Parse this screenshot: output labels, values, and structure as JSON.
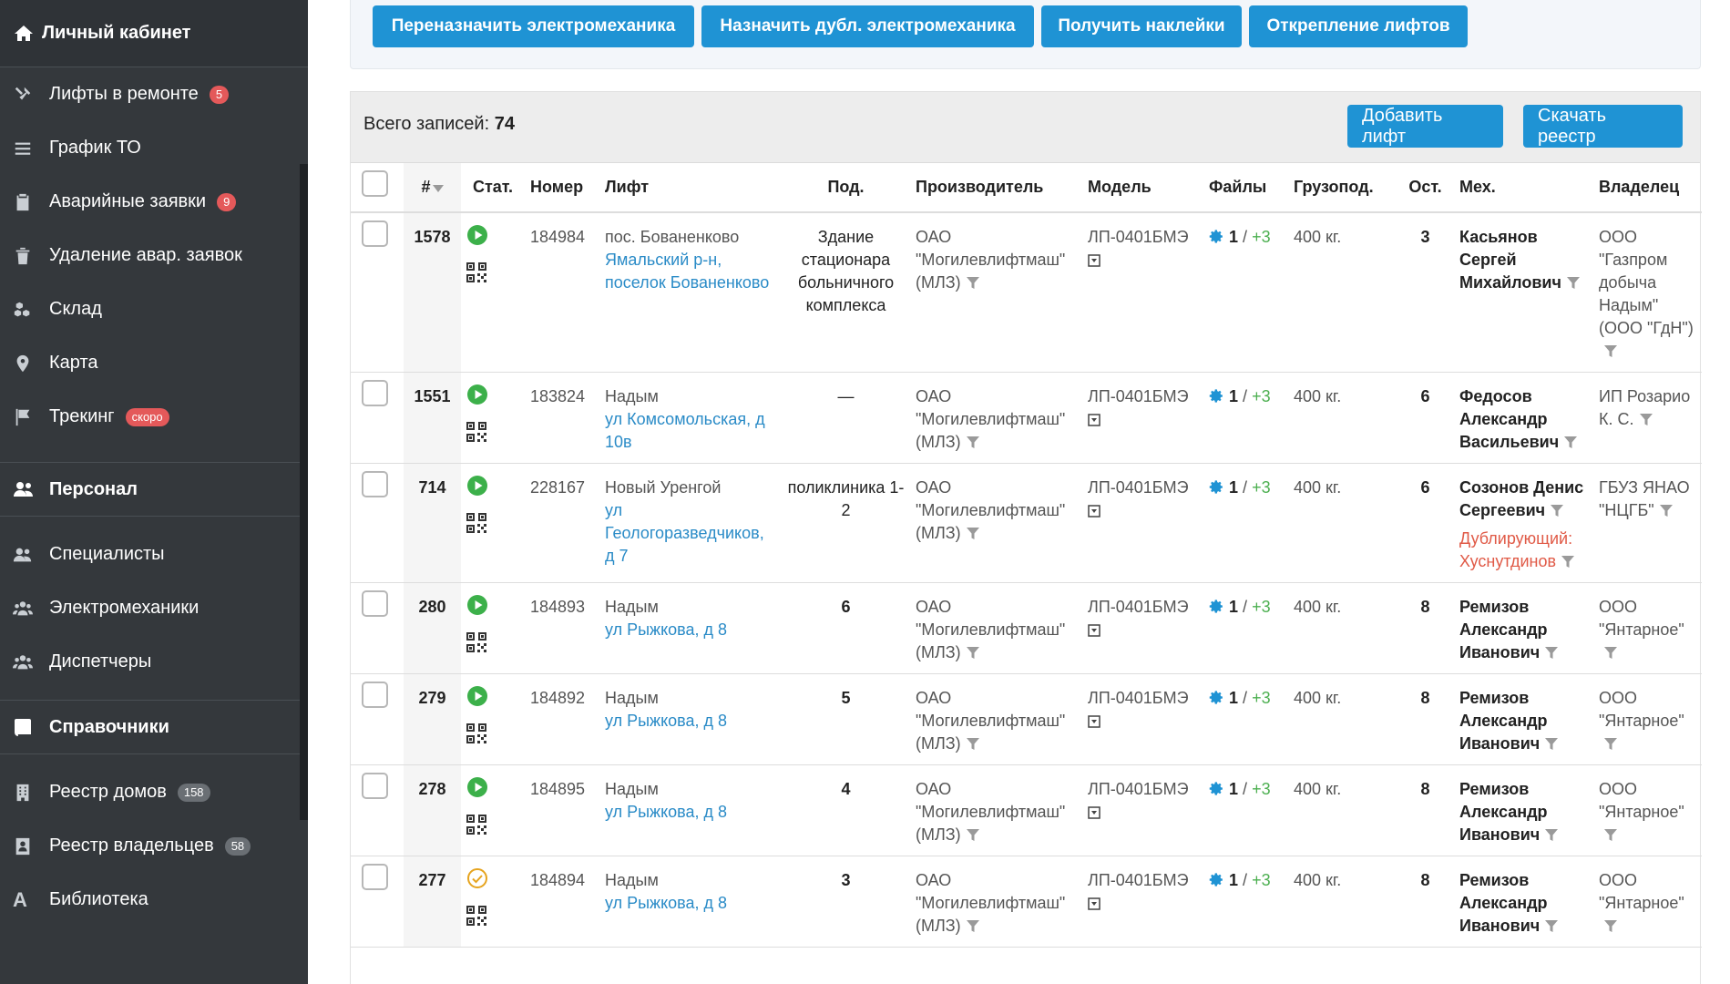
{
  "sidebar": {
    "header": "Личный кабинет",
    "items": [
      {
        "label": "Лифты в ремонте",
        "badge": "5"
      },
      {
        "label": "График ТО"
      },
      {
        "label": "Аварийные заявки",
        "badge": "9"
      },
      {
        "label": "Удаление авар. заявок"
      },
      {
        "label": "Склад"
      },
      {
        "label": "Карта"
      },
      {
        "label": "Трекинг",
        "badge": "скоро"
      }
    ],
    "section_personnel": "Персонал",
    "personnel": [
      {
        "label": "Специалисты"
      },
      {
        "label": "Электромеханики"
      },
      {
        "label": "Диспетчеры"
      }
    ],
    "section_refs": "Справочники",
    "refs": [
      {
        "label": "Реестр домов",
        "badge": "158"
      },
      {
        "label": "Реестр владельцев",
        "badge": "58"
      },
      {
        "label": "Библиотека"
      }
    ]
  },
  "toolbar": {
    "reassign": "Переназначить электромеханика",
    "assign_dup": "Назначить дубл. электромеханика",
    "stickers": "Получить наклейки",
    "detach": "Открепление лифтов"
  },
  "panel": {
    "total_label": "Всего записей:",
    "total_value": "74",
    "add_btn": "Добавить лифт",
    "download_btn": "Скачать реестр"
  },
  "columns": {
    "num": "#",
    "status": "Стат.",
    "number": "Номер",
    "lift": "Лифт",
    "entrance": "Под.",
    "manufacturer": "Производитель",
    "model": "Модель",
    "files": "Файлы",
    "capacity": "Грузопод.",
    "stops": "Ост.",
    "mech": "Мех.",
    "owner": "Владелец"
  },
  "rows": [
    {
      "id": "1578",
      "status": "play",
      "number": "184984",
      "city": "пос. Бованенково",
      "address": "Ямальский р-н, поселок Бованенково",
      "entrance": "Здание стационара больничного комплекса",
      "entrance_bold": false,
      "manufacturer": "ОАО \"Могилевлифтмаш\" (МЛЗ)",
      "model": "ЛП-0401БМЭ",
      "files_main": "1",
      "files_sep": "/",
      "files_extra": "+3",
      "capacity": "400 кг.",
      "stops": "3",
      "mech": "Касьянов Сергей Михайлович",
      "dup_label": "",
      "dup_name": "",
      "owner": "ООО \"Газпром добыча Надым\" (ООО \"ГдН\")"
    },
    {
      "id": "1551",
      "status": "play",
      "number": "183824",
      "city": "Надым",
      "address": "ул Комсомольская, д 10в",
      "entrance": "—",
      "entrance_bold": false,
      "manufacturer": "ОАО \"Могилевлифтмаш\" (МЛЗ)",
      "model": "ЛП-0401БМЭ",
      "files_main": "1",
      "files_sep": "/",
      "files_extra": "+3",
      "capacity": "400 кг.",
      "stops": "6",
      "mech": "Федосов Александр Васильевич",
      "dup_label": "",
      "dup_name": "",
      "owner": "ИП Розарио К. С."
    },
    {
      "id": "714",
      "status": "play",
      "number": "228167",
      "city": "Новый Уренгой",
      "address": "ул Геологоразведчиков, д 7",
      "entrance": "поликлиника 1-2",
      "entrance_bold": false,
      "manufacturer": "ОАО \"Могилевлифтмаш\" (МЛЗ)",
      "model": "ЛП-0401БМЭ",
      "files_main": "1",
      "files_sep": "/",
      "files_extra": "+3",
      "capacity": "400 кг.",
      "stops": "6",
      "mech": "Созонов Денис Сергеевич",
      "dup_label": "Дублирующий:",
      "dup_name": "Хуснутдинов",
      "owner": "ГБУЗ ЯНАО \"НЦГБ\""
    },
    {
      "id": "280",
      "status": "play",
      "number": "184893",
      "city": "Надым",
      "address": "ул Рыжкова, д 8",
      "entrance": "6",
      "entrance_bold": true,
      "manufacturer": "ОАО \"Могилевлифтмаш\" (МЛЗ)",
      "model": "ЛП-0401БМЭ",
      "files_main": "1",
      "files_sep": "/",
      "files_extra": "+3",
      "capacity": "400 кг.",
      "stops": "8",
      "mech": "Ремизов Александр Иванович",
      "dup_label": "",
      "dup_name": "",
      "owner": "ООО \"Янтарное\""
    },
    {
      "id": "279",
      "status": "play",
      "number": "184892",
      "city": "Надым",
      "address": "ул Рыжкова, д 8",
      "entrance": "5",
      "entrance_bold": true,
      "manufacturer": "ОАО \"Могилевлифтмаш\" (МЛЗ)",
      "model": "ЛП-0401БМЭ",
      "files_main": "1",
      "files_sep": "/",
      "files_extra": "+3",
      "capacity": "400 кг.",
      "stops": "8",
      "mech": "Ремизов Александр Иванович",
      "dup_label": "",
      "dup_name": "",
      "owner": "ООО \"Янтарное\""
    },
    {
      "id": "278",
      "status": "play",
      "number": "184895",
      "city": "Надым",
      "address": "ул Рыжкова, д 8",
      "entrance": "4",
      "entrance_bold": true,
      "manufacturer": "ОАО \"Могилевлифтмаш\" (МЛЗ)",
      "model": "ЛП-0401БМЭ",
      "files_main": "1",
      "files_sep": "/",
      "files_extra": "+3",
      "capacity": "400 кг.",
      "stops": "8",
      "mech": "Ремизов Александр Иванович",
      "dup_label": "",
      "dup_name": "",
      "owner": "ООО \"Янтарное\""
    },
    {
      "id": "277",
      "status": "check",
      "number": "184894",
      "city": "Надым",
      "address": "ул Рыжкова, д 8",
      "entrance": "3",
      "entrance_bold": true,
      "manufacturer": "ОАО \"Могилевлифтмаш\" (МЛЗ)",
      "model": "ЛП-0401БМЭ",
      "files_main": "1",
      "files_sep": "/",
      "files_extra": "+3",
      "capacity": "400 кг.",
      "stops": "8",
      "mech": "Ремизов Александр Иванович",
      "dup_label": "",
      "dup_name": "",
      "owner": "ООО \"Янтарное\""
    }
  ],
  "colors": {
    "accent": "#1f93d4",
    "status_play": "#3cb04a",
    "status_check": "#e6a41f",
    "danger": "#e05a47"
  }
}
